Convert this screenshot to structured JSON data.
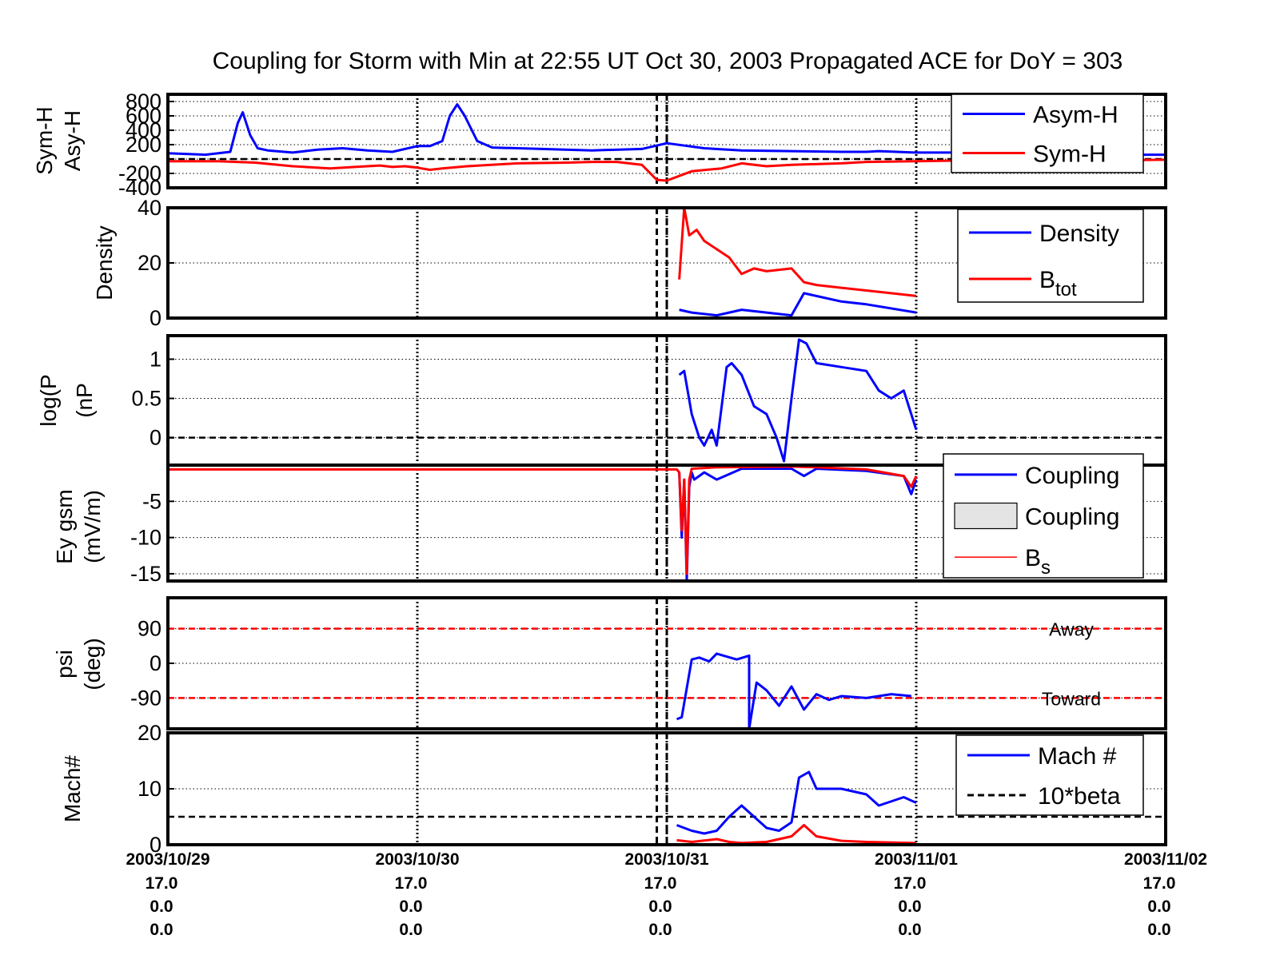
{
  "chart_data": {
    "title": "Coupling for Storm with Min at 22:55 UT Oct 30, 2003  Propagated ACE for DoY = 303",
    "type": "line",
    "x_axis": {
      "range_days": [
        0,
        4
      ],
      "tick_dates": [
        "2003/10/29",
        "2003/10/30",
        "2003/10/31",
        "2003/11/01",
        "2003/11/02"
      ],
      "tick_row2": [
        "17.0",
        "17.0",
        "17.0",
        "17.0",
        "17.0"
      ],
      "tick_row3": [
        "0.0",
        "0.0",
        "0.0",
        "0.0",
        "0.0"
      ],
      "tick_row4": [
        "0.0",
        "0.0",
        "0.0",
        "0.0",
        "0.0"
      ]
    },
    "markers_day": [
      1.96,
      2.0
    ],
    "grid": true,
    "panels": [
      {
        "id": "symh",
        "ylabel": [
          "Sym-H",
          "Asy-H"
        ],
        "ylim": [
          -400,
          900
        ],
        "yticks": [
          800,
          600,
          400,
          200,
          0,
          -200,
          -400
        ],
        "ytick_labels": [
          "800",
          "600",
          "400",
          "200",
          "",
          "-200",
          "-400"
        ],
        "zero_line": true,
        "legend": {
          "entries": [
            {
              "label": "Asym-H",
              "color": "#0000ff",
              "kind": "line"
            },
            {
              "label": "Sym-H",
              "color": "#ff0000",
              "kind": "line"
            }
          ]
        },
        "series": [
          {
            "name": "Asym-H",
            "color": "#0000ff",
            "x": [
              0,
              0.15,
              0.25,
              0.28,
              0.3,
              0.33,
              0.36,
              0.4,
              0.5,
              0.6,
              0.7,
              0.8,
              0.9,
              1.0,
              1.05,
              1.1,
              1.13,
              1.16,
              1.19,
              1.24,
              1.3,
              1.5,
              1.7,
              1.9,
              2.0,
              2.15,
              2.3,
              2.5,
              2.7,
              2.8,
              2.85,
              3.0,
              3.15,
              3.4,
              3.6,
              3.7,
              3.85,
              4.0
            ],
            "y": [
              80,
              60,
              100,
              500,
              650,
              330,
              150,
              120,
              90,
              130,
              150,
              120,
              100,
              180,
              180,
              250,
              600,
              760,
              600,
              250,
              160,
              140,
              120,
              140,
              220,
              150,
              120,
              110,
              100,
              100,
              110,
              90,
              90,
              60,
              70,
              60,
              60,
              60
            ]
          },
          {
            "name": "Sym-H",
            "color": "#ff0000",
            "x": [
              0,
              0.2,
              0.35,
              0.5,
              0.65,
              0.75,
              0.85,
              0.9,
              0.95,
              1.0,
              1.05,
              1.1,
              1.2,
              1.4,
              1.6,
              1.7,
              1.8,
              1.9,
              1.96,
              2.0,
              2.1,
              2.22,
              2.3,
              2.4,
              2.5,
              2.7,
              2.8,
              3.0,
              3.2,
              3.5,
              3.7,
              4.0
            ],
            "y": [
              -30,
              -30,
              -50,
              -100,
              -130,
              -110,
              -90,
              -110,
              -100,
              -120,
              -150,
              -130,
              -100,
              -60,
              -50,
              -40,
              -40,
              -80,
              -290,
              -300,
              -170,
              -130,
              -60,
              -100,
              -80,
              -60,
              -40,
              -30,
              -20,
              -40,
              -20,
              -10
            ]
          }
        ]
      },
      {
        "id": "density",
        "ylabel": [
          "Density"
        ],
        "ylim": [
          0,
          40
        ],
        "yticks": [
          40,
          20,
          0
        ],
        "ytick_labels": [
          "40",
          "20",
          "0"
        ],
        "legend": {
          "entries": [
            {
              "label": "Density",
              "color": "#0000ff",
              "kind": "line"
            },
            {
              "label": "B",
              "sub": "tot",
              "color": "#ff0000",
              "kind": "line"
            }
          ]
        },
        "series": [
          {
            "name": "Density",
            "color": "#0000ff",
            "x": [
              2.05,
              2.1,
              2.2,
              2.25,
              2.3,
              2.4,
              2.5,
              2.55,
              2.6,
              2.7,
              2.8,
              3.0
            ],
            "y": [
              3,
              2,
              1,
              2,
              3,
              2,
              1,
              9,
              8,
              6,
              5,
              2
            ]
          },
          {
            "name": "Btot",
            "color": "#ff0000",
            "x": [
              2.05,
              2.07,
              2.09,
              2.12,
              2.15,
              2.2,
              2.25,
              2.3,
              2.35,
              2.4,
              2.5,
              2.55,
              2.6,
              2.7,
              2.8,
              2.9,
              3.0
            ],
            "y": [
              14,
              40,
              30,
              32,
              28,
              25,
              22,
              16,
              18,
              17,
              18,
              13,
              12,
              11,
              10,
              9,
              8
            ]
          }
        ]
      },
      {
        "id": "pdyn",
        "ylabel": [
          "log(P",
          "(nP"
        ],
        "ylim": [
          -0.35,
          1.3
        ],
        "yticks": [
          1,
          0.5,
          0
        ],
        "ytick_labels": [
          "1",
          "0.5",
          "0"
        ],
        "zero_line": true,
        "series": [
          {
            "name": "log(Pdyn)",
            "color": "#0000ff",
            "x": [
              2.05,
              2.07,
              2.1,
              2.13,
              2.15,
              2.18,
              2.2,
              2.24,
              2.26,
              2.3,
              2.35,
              2.4,
              2.44,
              2.47,
              2.5,
              2.53,
              2.56,
              2.6,
              2.7,
              2.8,
              2.85,
              2.9,
              2.95,
              3.0
            ],
            "y": [
              0.8,
              0.85,
              0.3,
              0.0,
              -0.1,
              0.1,
              -0.1,
              0.9,
              0.95,
              0.8,
              0.4,
              0.3,
              0.0,
              -0.3,
              0.5,
              1.25,
              1.2,
              0.95,
              0.9,
              0.85,
              0.6,
              0.5,
              0.6,
              0.1
            ]
          }
        ]
      },
      {
        "id": "ey",
        "ylabel": [
          "Ey gsm",
          "(mV/m)"
        ],
        "ylim": [
          -16,
          0
        ],
        "yticks": [
          -5,
          -10,
          -15
        ],
        "ytick_labels": [
          "-5",
          "-10",
          "-15"
        ],
        "legend": {
          "entries": [
            {
              "label": "Coupling",
              "color": "#0000ff",
              "kind": "line"
            },
            {
              "label": "Coupling",
              "color": "#e4e4e4",
              "kind": "box"
            },
            {
              "label": "B",
              "sub": "s",
              "color": "#ff0000",
              "kind": "thinline"
            }
          ]
        },
        "series": [
          {
            "name": "Coupling",
            "color": "#0000ff",
            "x": [
              2.05,
              2.06,
              2.07,
              2.08,
              2.09,
              2.1,
              2.11,
              2.15,
              2.2,
              2.3,
              2.5,
              2.55,
              2.6,
              2.8,
              2.95,
              2.98,
              3.0
            ],
            "y": [
              -1,
              -10,
              -2,
              -16,
              -3,
              -1,
              -2,
              -1,
              -2,
              -0.5,
              -0.5,
              -1.5,
              -0.5,
              -0.8,
              -1.5,
              -4,
              -2
            ]
          },
          {
            "name": "Bs",
            "color": "#ff0000",
            "x": [
              0,
              2.04,
              2.05,
              2.06,
              2.07,
              2.08,
              2.09,
              2.1,
              2.2,
              2.5,
              2.6,
              2.8,
              2.95,
              2.98,
              3.0
            ],
            "y": [
              -0.6,
              -0.6,
              -1,
              -9,
              -2,
              -15,
              -2,
              -0.5,
              -0.3,
              -0.2,
              -0.3,
              -0.6,
              -1.5,
              -3,
              -1.5
            ]
          }
        ]
      },
      {
        "id": "psi",
        "ylabel": [
          "psi",
          "(deg)"
        ],
        "ylim": [
          -170,
          170
        ],
        "yticks": [
          90,
          0,
          -90
        ],
        "ytick_labels": [
          "90",
          "0",
          "-90"
        ],
        "reference_lines": [
          {
            "value": 90,
            "label": "Away"
          },
          {
            "value": -90,
            "label": "Toward"
          }
        ],
        "series": [
          {
            "name": "psi",
            "color": "#0000ff",
            "x": [
              2.04,
              2.06,
              2.1,
              2.13,
              2.17,
              2.2,
              2.28,
              2.33,
              2.33,
              2.36,
              2.4,
              2.45,
              2.5,
              2.55,
              2.6,
              2.65,
              2.7,
              2.8,
              2.9,
              2.98
            ],
            "y": [
              -145,
              -140,
              10,
              15,
              5,
              25,
              10,
              20,
              -170,
              -50,
              -70,
              -110,
              -60,
              -120,
              -80,
              -95,
              -85,
              -90,
              -80,
              -85
            ]
          }
        ]
      },
      {
        "id": "mach",
        "ylabel": [
          "Mach#"
        ],
        "ylim": [
          0,
          20
        ],
        "yticks": [
          20,
          10,
          0
        ],
        "ytick_labels": [
          "20",
          "10",
          "0"
        ],
        "legend": {
          "entries": [
            {
              "label": "Mach #",
              "color": "#0000ff",
              "kind": "line"
            },
            {
              "label": "10*beta",
              "color": "#000000",
              "kind": "dash"
            }
          ]
        },
        "hline": {
          "value": 5,
          "style": "dash"
        },
        "series": [
          {
            "name": "Mach #",
            "color": "#0000ff",
            "x": [
              2.04,
              2.1,
              2.15,
              2.2,
              2.25,
              2.3,
              2.35,
              2.4,
              2.45,
              2.5,
              2.53,
              2.57,
              2.6,
              2.7,
              2.8,
              2.85,
              2.95,
              3.0
            ],
            "y": [
              3.5,
              2.5,
              2,
              2.5,
              5,
              7,
              5,
              3,
              2.5,
              4,
              12,
              13,
              10,
              10,
              9,
              7,
              8.5,
              7.5
            ]
          },
          {
            "name": "10*beta",
            "color": "#ff0000",
            "x": [
              2.04,
              2.1,
              2.2,
              2.25,
              2.3,
              2.4,
              2.5,
              2.55,
              2.6,
              2.7,
              2.8,
              3.0
            ],
            "y": [
              0.8,
              0.5,
              1,
              0.5,
              0.3,
              0.5,
              1.5,
              3.5,
              1.5,
              0.7,
              0.5,
              0.3
            ]
          }
        ]
      }
    ]
  }
}
